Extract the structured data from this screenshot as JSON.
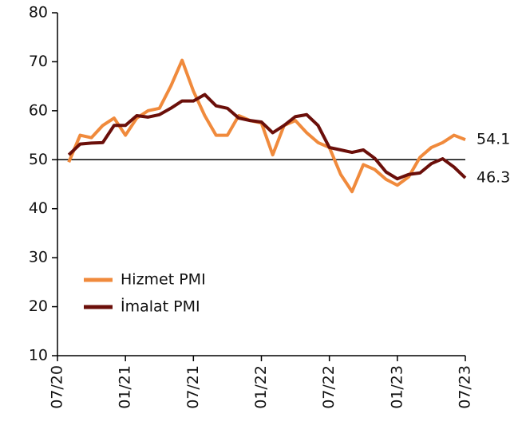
{
  "chart_data": {
    "type": "line",
    "categories": [
      "07/20",
      null,
      null,
      null,
      null,
      null,
      "01/21",
      null,
      null,
      null,
      null,
      null,
      "07/21",
      null,
      null,
      null,
      null,
      null,
      "01/22",
      null,
      null,
      null,
      null,
      null,
      "07/22",
      null,
      null,
      null,
      null,
      null,
      "01/23",
      null,
      null,
      null,
      null,
      null,
      "07/23"
    ],
    "series": [
      {
        "name": "Hizmet PMI",
        "color": "#f08a3c",
        "values": [
          null,
          49.5,
          55,
          54.5,
          57,
          58.5,
          55,
          58.5,
          60,
          60.5,
          65,
          70.3,
          64,
          59,
          55,
          55,
          59,
          58,
          57.5,
          51,
          57,
          58,
          55.5,
          53.5,
          52.5,
          47,
          43.5,
          49,
          48,
          46,
          44.8,
          46.5,
          50.5,
          52.5,
          53.5,
          55,
          54.1
        ]
      },
      {
        "name": "İmalat PMI",
        "color": "#6b0f0a",
        "values": [
          null,
          51,
          53.2,
          53.4,
          53.5,
          57,
          57,
          59,
          58.7,
          59.2,
          60.5,
          62,
          62,
          63.3,
          61,
          60.5,
          58.5,
          58,
          57.7,
          55.5,
          57,
          58.8,
          59.2,
          57,
          52.5,
          52,
          51.5,
          52,
          50.3,
          47.5,
          46.1,
          47,
          47.3,
          49.2,
          50.2,
          48.5,
          46.3
        ]
      }
    ],
    "ylim": [
      10,
      80
    ],
    "yticks": [
      10,
      20,
      30,
      40,
      50,
      60,
      70,
      80
    ],
    "hline": 50,
    "legend": "lower left"
  }
}
